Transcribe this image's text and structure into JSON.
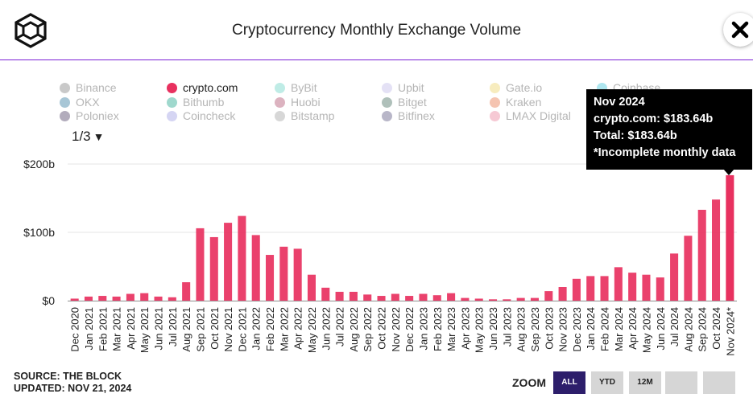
{
  "header": {
    "title": "Cryptocurrency Monthly Exchange Volume",
    "close_symbol": "✕"
  },
  "legend": {
    "items": [
      {
        "label": "Binance",
        "color": "#c9c9c9",
        "active": false
      },
      {
        "label": "OKX",
        "color": "#a7c6d6",
        "active": false
      },
      {
        "label": "Poloniex",
        "color": "#b2acbc",
        "active": false
      },
      {
        "label": "crypto.com",
        "color": "#e8315f",
        "active": true
      },
      {
        "label": "Bithumb",
        "color": "#9fd8cd",
        "active": false
      },
      {
        "label": "Coincheck",
        "color": "#d5d5f3",
        "active": false
      },
      {
        "label": "ByBit",
        "color": "#bfece6",
        "active": false
      },
      {
        "label": "Huobi",
        "color": "#dcb3c0",
        "active": false
      },
      {
        "label": "Bitstamp",
        "color": "#d7d7d7",
        "active": false
      },
      {
        "label": "Upbit",
        "color": "#e4e1f5",
        "active": false
      },
      {
        "label": "Bitget",
        "color": "#afc0ba",
        "active": false
      },
      {
        "label": "Bitfinex",
        "color": "#b8b6c8",
        "active": false
      },
      {
        "label": "Gate.io",
        "color": "#f7ecbe",
        "active": false
      },
      {
        "label": "Kraken",
        "color": "#f5c4b1",
        "active": false
      },
      {
        "label": "LMAX Digital",
        "color": "#f6c9d4",
        "active": false
      },
      {
        "label": "Coinbase",
        "color": "#aee6ef",
        "active": false
      }
    ],
    "pager": "1/3",
    "pager_arrow": "▼"
  },
  "chart_data": {
    "type": "bar",
    "categories": [
      "Dec 2020",
      "Jan 2021",
      "Feb 2021",
      "Mar 2021",
      "Apr 2021",
      "May 2021",
      "Jun 2021",
      "Jul 2021",
      "Aug 2021",
      "Sep 2021",
      "Oct 2021",
      "Nov 2021",
      "Dec 2021",
      "Jan 2022",
      "Feb 2022",
      "Mar 2022",
      "Apr 2022",
      "May 2022",
      "Jun 2022",
      "Jul 2022",
      "Aug 2022",
      "Sep 2022",
      "Oct 2022",
      "Nov 2022",
      "Dec 2022",
      "Jan 2023",
      "Feb 2023",
      "Mar 2023",
      "Apr 2023",
      "May 2023",
      "Jun 2023",
      "Jul 2023",
      "Aug 2023",
      "Sep 2023",
      "Oct 2023",
      "Nov 2023",
      "Dec 2023",
      "Jan 2024",
      "Feb 2024",
      "Mar 2024",
      "Apr 2024",
      "May 2024",
      "Jun 2024",
      "Jul 2024",
      "Aug 2024",
      "Sep 2024",
      "Oct 2024",
      "Nov 2024*"
    ],
    "series": [
      {
        "name": "crypto.com",
        "color": "#e8315f",
        "values": [
          3,
          6,
          7,
          6,
          10,
          11,
          6,
          5,
          27,
          106,
          93,
          114,
          124,
          96,
          67,
          79,
          76,
          38,
          19,
          13,
          13,
          9,
          7,
          10,
          7,
          10,
          8,
          11,
          4,
          3,
          2,
          2,
          4,
          4,
          14,
          20,
          32,
          36,
          36,
          49,
          41,
          38,
          34,
          69,
          95,
          133,
          148,
          183.64
        ]
      }
    ],
    "y_ticks": [
      {
        "value": 0,
        "label": "$0"
      },
      {
        "value": 100,
        "label": "$100b"
      },
      {
        "value": 200,
        "label": "$200b"
      }
    ],
    "ylim": [
      0,
      200
    ],
    "grid": true,
    "title": "Cryptocurrency Monthly Exchange Volume"
  },
  "tooltip": {
    "line1": "Nov 2024",
    "line2": "crypto.com: $183.64b",
    "line3": "Total: $183.64b",
    "line4": "*Incomplete monthly data"
  },
  "source": {
    "line1": "SOURCE: THE BLOCK",
    "line2": "UPDATED: NOV 21, 2024"
  },
  "zoom": {
    "label": "ZOOM",
    "buttons": [
      {
        "label": "ALL",
        "active": true
      },
      {
        "label": "YTD",
        "active": false
      },
      {
        "label": "12M",
        "active": false
      },
      {
        "label": "",
        "active": false
      },
      {
        "label": "",
        "active": false
      }
    ]
  }
}
